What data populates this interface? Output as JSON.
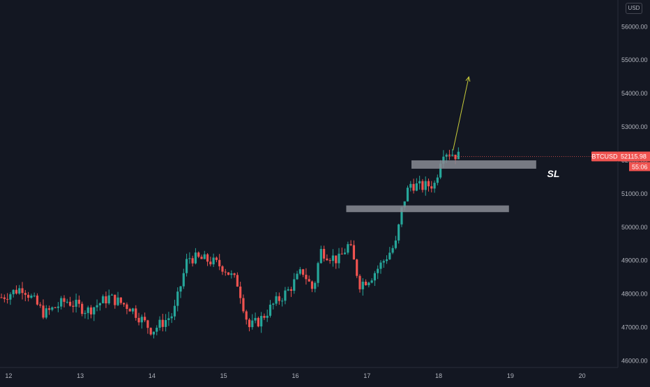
{
  "currency": "USD",
  "symbol": "BTCUSD",
  "last_price": "52115.98",
  "countdown": "55:06",
  "sl_label": "SL",
  "colors": {
    "background": "#131722",
    "up": "#26a69a",
    "down": "#ef5350",
    "zone": "#8a8c94",
    "arrow": "#c8cc3a",
    "axis_text": "#b2b5be"
  },
  "chart_data": {
    "type": "candlestick",
    "x_ticks": [
      "12",
      "13",
      "14",
      "15",
      "16",
      "17",
      "18",
      "19",
      "20"
    ],
    "y_ticks": [
      "46000.00",
      "47000.00",
      "48000.00",
      "49000.00",
      "50000.00",
      "51000.00",
      "52000.00",
      "53000.00",
      "54000.00",
      "55000.00",
      "56000.00"
    ],
    "ylim": [
      45800,
      56800
    ],
    "xlim": [
      11.88,
      20.5
    ],
    "series_close": [
      [
        11.9,
        47900
      ],
      [
        12.2,
        48200
      ],
      [
        12.5,
        47400
      ],
      [
        12.8,
        47800
      ],
      [
        13.1,
        47500
      ],
      [
        13.4,
        47900
      ],
      [
        13.7,
        47600
      ],
      [
        14.0,
        46900
      ],
      [
        14.3,
        47400
      ],
      [
        14.5,
        49100
      ],
      [
        14.8,
        49000
      ],
      [
        15.0,
        48800
      ],
      [
        15.2,
        48300
      ],
      [
        15.35,
        47000
      ],
      [
        15.5,
        47200
      ],
      [
        15.7,
        47700
      ],
      [
        15.9,
        48100
      ],
      [
        16.1,
        48700
      ],
      [
        16.25,
        48100
      ],
      [
        16.35,
        49300
      ],
      [
        16.6,
        49000
      ],
      [
        16.75,
        49500
      ],
      [
        16.9,
        48300
      ],
      [
        17.05,
        48500
      ],
      [
        17.2,
        48900
      ],
      [
        17.4,
        49500
      ],
      [
        17.5,
        50700
      ],
      [
        17.6,
        51300
      ],
      [
        17.75,
        51200
      ],
      [
        17.95,
        51300
      ],
      [
        18.05,
        52300
      ],
      [
        18.2,
        52200
      ],
      [
        18.3,
        52100
      ]
    ],
    "zones": [
      {
        "x_start": 16.71,
        "x_end": 18.98,
        "y_low": 50450,
        "y_high": 50650
      },
      {
        "x_start": 17.62,
        "x_end": 19.36,
        "y_low": 51750,
        "y_high": 52000
      }
    ],
    "arrow": {
      "x_from": 18.2,
      "y_from": 52300,
      "x_to": 18.42,
      "y_to": 54500
    },
    "sl_annotation": {
      "x": 19.6,
      "y": 51500
    }
  }
}
